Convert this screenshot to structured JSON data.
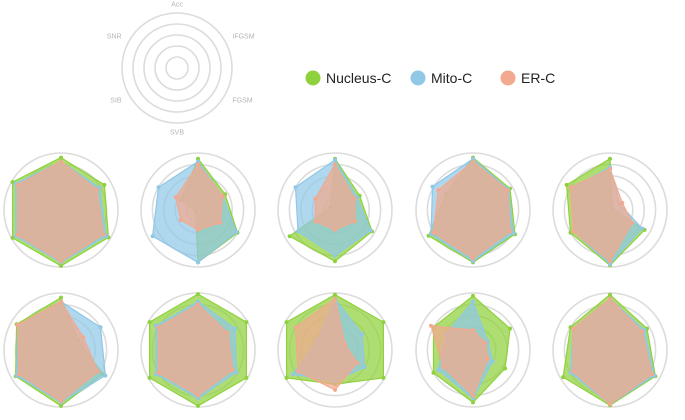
{
  "legend": [
    {
      "label": "Nucleus-C",
      "color": "#8fd13c"
    },
    {
      "label": "Mito-C",
      "color": "#90c8e6"
    },
    {
      "label": "ER-C",
      "color": "#f2a98f"
    }
  ],
  "chart_data": {
    "type": "radar",
    "axes": [
      "Acc",
      "IFGSM",
      "FGSM",
      "SVB",
      "SIB",
      "SNR"
    ],
    "range": [
      0,
      1
    ],
    "rings": 5,
    "grid": true,
    "legend_position": "top-right",
    "panels": [
      {
        "series": [
          {
            "name": "Nucleus-C",
            "values": [
              0.92,
              0.88,
              0.96,
              0.98,
              0.98,
              0.98
            ]
          },
          {
            "name": "Mito-C",
            "values": [
              0.85,
              0.78,
              0.92,
              0.92,
              0.92,
              0.92
            ]
          },
          {
            "name": "ER-C",
            "values": [
              0.85,
              0.72,
              0.86,
              0.9,
              0.88,
              0.88
            ]
          }
        ]
      },
      {
        "series": [
          {
            "name": "Nucleus-C",
            "values": [
              0.9,
              0.55,
              0.8,
              0.92,
              0.05,
              0.35
            ]
          },
          {
            "name": "Mito-C",
            "values": [
              0.85,
              0.5,
              0.78,
              0.92,
              0.92,
              0.8
            ]
          },
          {
            "name": "ER-C",
            "values": [
              0.8,
              0.5,
              0.45,
              0.35,
              0.35,
              0.45
            ]
          }
        ]
      },
      {
        "series": [
          {
            "name": "Nucleus-C",
            "values": [
              0.9,
              0.5,
              0.75,
              0.9,
              0.92,
              0.1
            ]
          },
          {
            "name": "Mito-C",
            "values": [
              0.88,
              0.45,
              0.72,
              0.8,
              0.75,
              0.8
            ]
          },
          {
            "name": "ER-C",
            "values": [
              0.8,
              0.4,
              0.4,
              0.35,
              0.4,
              0.4
            ]
          }
        ]
      },
      {
        "series": [
          {
            "name": "Nucleus-C",
            "values": [
              0.92,
              0.75,
              0.85,
              0.92,
              0.9,
              0.55
            ]
          },
          {
            "name": "Mito-C",
            "values": [
              0.9,
              0.72,
              0.82,
              0.9,
              0.85,
              0.82
            ]
          },
          {
            "name": "ER-C",
            "values": [
              0.85,
              0.7,
              0.75,
              0.85,
              0.8,
              0.7
            ]
          }
        ]
      },
      {
        "series": [
          {
            "name": "Nucleus-C",
            "values": [
              0.9,
              0.05,
              0.7,
              0.97,
              0.8,
              0.88
            ]
          },
          {
            "name": "Mito-C",
            "values": [
              0.75,
              0.2,
              0.65,
              0.95,
              0.75,
              0.78
            ]
          },
          {
            "name": "ER-C",
            "values": [
              0.72,
              0.25,
              0.45,
              0.9,
              0.75,
              0.8
            ]
          }
        ]
      },
      {
        "series": [
          {
            "name": "Nucleus-C",
            "values": [
              0.92,
              0.35,
              0.85,
              0.98,
              0.92,
              0.9
            ]
          },
          {
            "name": "Mito-C",
            "values": [
              0.85,
              0.8,
              0.9,
              0.92,
              0.9,
              0.88
            ]
          },
          {
            "name": "ER-C",
            "values": [
              0.85,
              0.45,
              0.75,
              0.9,
              0.85,
              0.88
            ]
          }
        ]
      },
      {
        "series": [
          {
            "name": "Nucleus-C",
            "values": [
              0.98,
              0.98,
              0.98,
              0.98,
              0.98,
              0.98
            ]
          },
          {
            "name": "Mito-C",
            "values": [
              0.85,
              0.75,
              0.78,
              0.85,
              0.85,
              0.85
            ]
          },
          {
            "name": "ER-C",
            "values": [
              0.8,
              0.6,
              0.7,
              0.8,
              0.8,
              0.8
            ]
          }
        ]
      },
      {
        "series": [
          {
            "name": "Nucleus-C",
            "values": [
              0.97,
              0.98,
              0.98,
              0.6,
              0.98,
              0.98
            ]
          },
          {
            "name": "Mito-C",
            "values": [
              0.9,
              0.55,
              0.6,
              0.55,
              0.85,
              0.35
            ]
          },
          {
            "name": "ER-C",
            "values": [
              0.9,
              0.2,
              0.45,
              0.7,
              0.75,
              0.8
            ]
          }
        ]
      },
      {
        "series": [
          {
            "name": "Nucleus-C",
            "values": [
              0.95,
              0.75,
              0.65,
              0.92,
              0.8,
              0.8
            ]
          },
          {
            "name": "Mito-C",
            "values": [
              0.85,
              0.3,
              0.4,
              0.85,
              0.7,
              0.55
            ]
          },
          {
            "name": "ER-C",
            "values": [
              0.35,
              0.25,
              0.3,
              0.8,
              0.6,
              0.85
            ]
          }
        ]
      },
      {
        "series": [
          {
            "name": "Nucleus-C",
            "values": [
              0.97,
              0.75,
              0.92,
              0.97,
              0.95,
              0.8
            ]
          },
          {
            "name": "Mito-C",
            "values": [
              0.9,
              0.7,
              0.9,
              0.95,
              0.8,
              0.75
            ]
          },
          {
            "name": "ER-C",
            "values": [
              0.9,
              0.65,
              0.85,
              0.95,
              0.75,
              0.75
            ]
          }
        ]
      }
    ]
  }
}
